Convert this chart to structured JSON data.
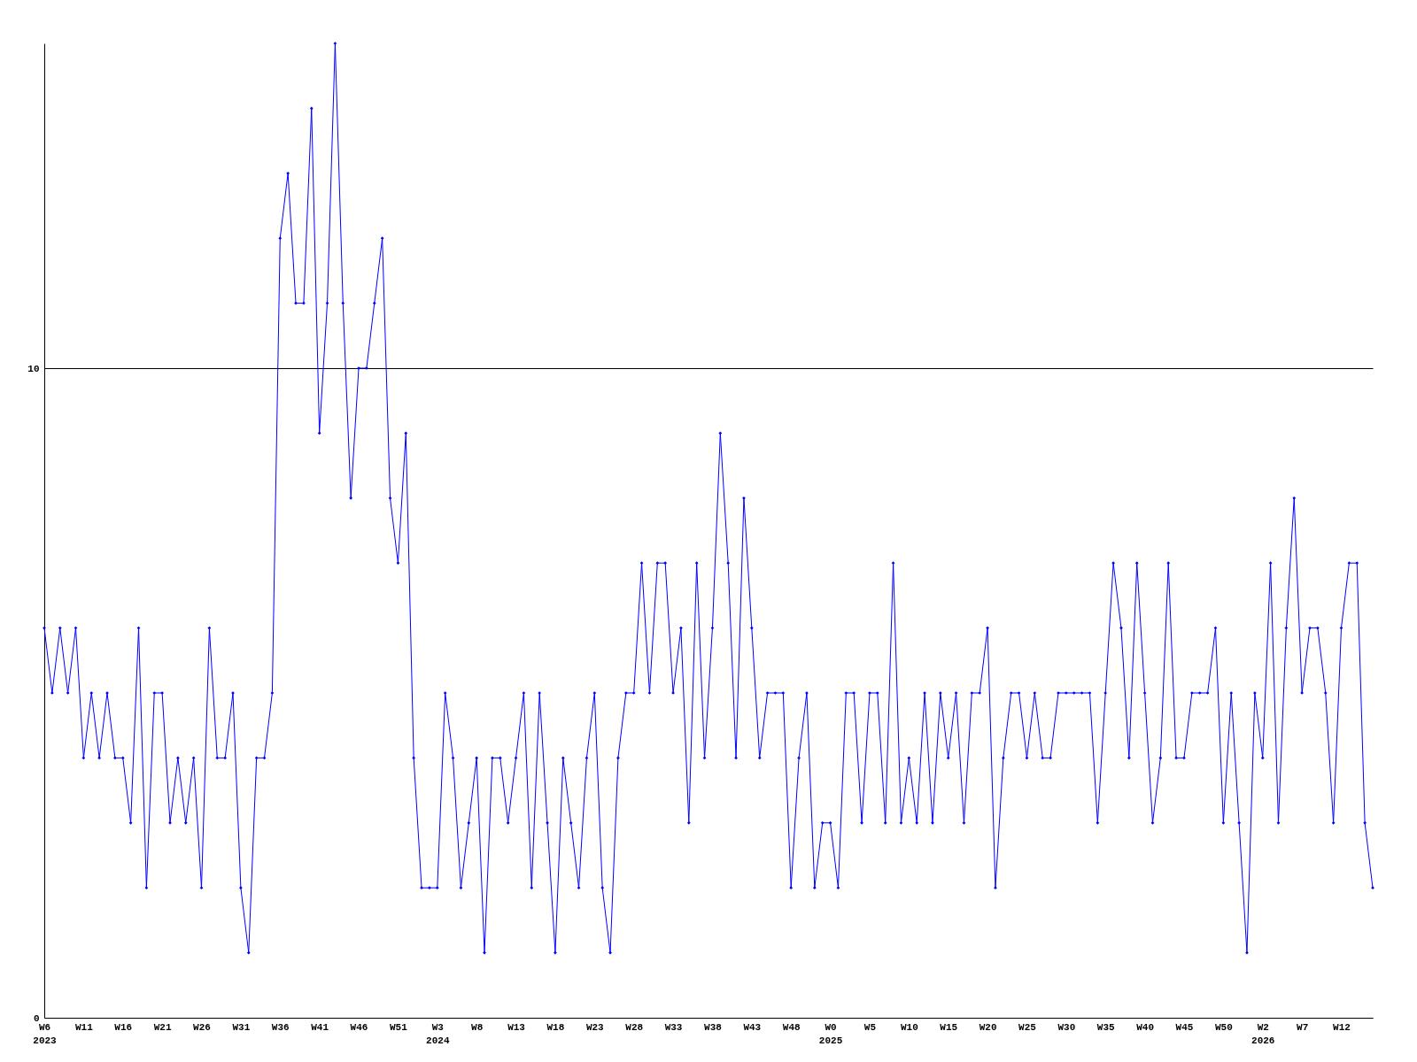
{
  "chart_data": {
    "type": "line",
    "categories": [
      "W6\n2023",
      null,
      null,
      null,
      null,
      "W11",
      null,
      null,
      null,
      null,
      "W16",
      null,
      null,
      null,
      null,
      "W21",
      null,
      null,
      null,
      null,
      "W26",
      null,
      null,
      null,
      null,
      "W31",
      null,
      null,
      null,
      null,
      "W36",
      null,
      null,
      null,
      null,
      "W41",
      null,
      null,
      null,
      null,
      "W46",
      null,
      null,
      null,
      null,
      "W51",
      null,
      null,
      null,
      null,
      "W3\n2024",
      null,
      null,
      null,
      null,
      "W8",
      null,
      null,
      null,
      null,
      "W13",
      null,
      null,
      null,
      null,
      "W18",
      null,
      null,
      null,
      null,
      "W23",
      null,
      null,
      null,
      null,
      "W28",
      null,
      null,
      null,
      null,
      "W33",
      null,
      null,
      null,
      null,
      "W38",
      null,
      null,
      null,
      null,
      "W43",
      null,
      null,
      null,
      null,
      "W48",
      null,
      null,
      null,
      null,
      "W0\n2025",
      null,
      null,
      null,
      null,
      "W5",
      null,
      null,
      null,
      null,
      "W10",
      null,
      null,
      null,
      null,
      "W15",
      null,
      null,
      null,
      null,
      "W20",
      null,
      null,
      null,
      null,
      "W25",
      null,
      null,
      null,
      null,
      "W30",
      null,
      null,
      null,
      null,
      "W35",
      null,
      null,
      null,
      null,
      "W40",
      null,
      null,
      null,
      null,
      "W45",
      null,
      null,
      null,
      null,
      "W50",
      null,
      null,
      null,
      null,
      "W2\n2026",
      null,
      null,
      null,
      null,
      "W7",
      null,
      null,
      null,
      null,
      "W12",
      null,
      null,
      null,
      null
    ],
    "series": [
      {
        "color": "#0000ff",
        "values": [
          6,
          5,
          6,
          5,
          6,
          4,
          5,
          4,
          5,
          4,
          4,
          3,
          6,
          2,
          5,
          5,
          3,
          4,
          3,
          4,
          2,
          6,
          4,
          4,
          5,
          2,
          1,
          4,
          4,
          5,
          12,
          13,
          11,
          11,
          14,
          9,
          11,
          15,
          11,
          8,
          10,
          10,
          11,
          12,
          8,
          7,
          9,
          4,
          2,
          2,
          2,
          5,
          4,
          2,
          3,
          4,
          1,
          4,
          4,
          3,
          4,
          5,
          2,
          5,
          3,
          1,
          4,
          3,
          2,
          4,
          5,
          2,
          1,
          4,
          5,
          5,
          7,
          5,
          7,
          7,
          5,
          6,
          3,
          7,
          4,
          6,
          9,
          7,
          4,
          8,
          6,
          4,
          5,
          5,
          5,
          2,
          4,
          5,
          2,
          3,
          3,
          2,
          5,
          5,
          3,
          5,
          5,
          3,
          7,
          3,
          4,
          3,
          5,
          3,
          5,
          4,
          5,
          3,
          5,
          5,
          6,
          2,
          4,
          5,
          5,
          4,
          5,
          4,
          4,
          5,
          5,
          5,
          5,
          5,
          3,
          5,
          7,
          6,
          4,
          7,
          5,
          3,
          4,
          7,
          4,
          4,
          5,
          5,
          5,
          6,
          3,
          5,
          3,
          1,
          5,
          4,
          7,
          3,
          6,
          8,
          5,
          6,
          6,
          5,
          3,
          6,
          7,
          7,
          3,
          2
        ]
      }
    ],
    "ylim": [
      0,
      15
    ],
    "yticks": [
      0,
      10
    ],
    "grid": "y",
    "marker": "diamond",
    "line_style": "solid"
  }
}
